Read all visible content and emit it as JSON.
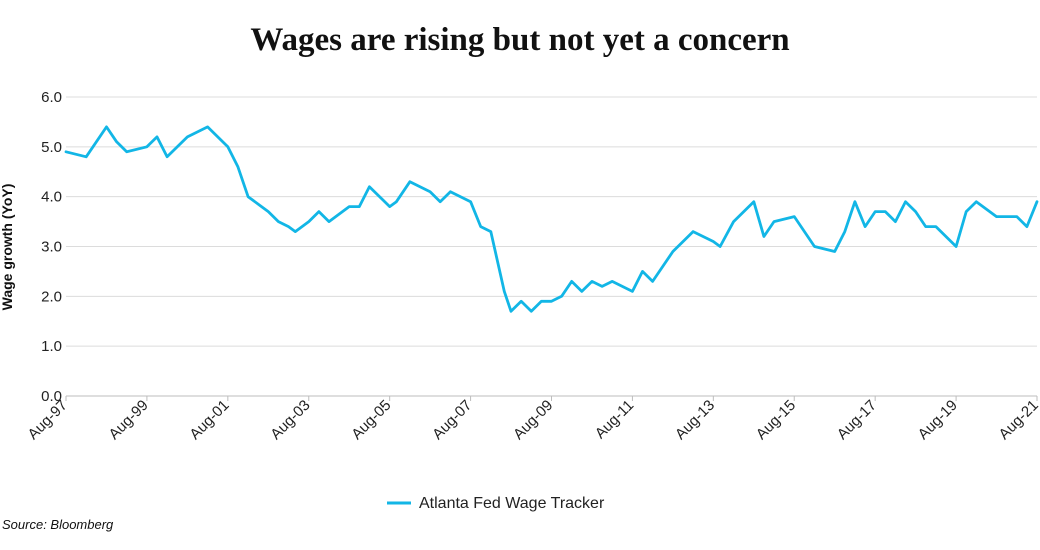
{
  "title": "Wages are rising but not yet a concern",
  "source": "Source: Bloomberg",
  "chart_data": {
    "type": "line",
    "ylabel": "Wage growth (YoY)",
    "xlabel": "",
    "ylim": [
      0,
      6
    ],
    "yticks": [
      "0.0",
      "1.0",
      "2.0",
      "3.0",
      "4.0",
      "5.0",
      "6.0"
    ],
    "xticks": [
      "Aug-97",
      "Aug-99",
      "Aug-01",
      "Aug-03",
      "Aug-05",
      "Aug-07",
      "Aug-09",
      "Aug-11",
      "Aug-13",
      "Aug-15",
      "Aug-17",
      "Aug-19",
      "Aug-21"
    ],
    "grid": true,
    "legend": "bottom-center",
    "series_color": "#12b6e6",
    "series": [
      {
        "name": "Atlanta Fed Wage Tracker",
        "x": [
          "Aug-97",
          "Feb-98",
          "Aug-98",
          "Nov-98",
          "Feb-99",
          "Aug-99",
          "Nov-99",
          "Feb-00",
          "Aug-00",
          "Feb-01",
          "Aug-01",
          "Nov-01",
          "Feb-02",
          "Jun-02",
          "Aug-02",
          "Nov-02",
          "Feb-03",
          "Apr-03",
          "Aug-03",
          "Nov-03",
          "Feb-04",
          "Aug-04",
          "Nov-04",
          "Feb-05",
          "Aug-05",
          "Oct-05",
          "Feb-06",
          "Aug-06",
          "Nov-06",
          "Feb-07",
          "Aug-07",
          "Nov-07",
          "Feb-08",
          "Jun-08",
          "Aug-08",
          "Nov-08",
          "Feb-09",
          "May-09",
          "Aug-09",
          "Nov-09",
          "Feb-10",
          "May-10",
          "Aug-10",
          "Nov-10",
          "Feb-11",
          "Aug-11",
          "Nov-11",
          "Feb-12",
          "Aug-12",
          "Feb-13",
          "Aug-13",
          "Oct-13",
          "Feb-14",
          "Aug-14",
          "Nov-14",
          "Feb-15",
          "Aug-15",
          "Feb-16",
          "Aug-16",
          "Nov-16",
          "Feb-17",
          "May-17",
          "Aug-17",
          "Nov-17",
          "Feb-18",
          "May-18",
          "Aug-18",
          "Nov-18",
          "Feb-19",
          "Aug-19",
          "Nov-19",
          "Feb-20",
          "Aug-20",
          "Feb-21",
          "May-21",
          "Aug-21"
        ],
        "values": [
          4.9,
          4.8,
          5.4,
          5.1,
          4.9,
          5.0,
          5.2,
          4.8,
          5.2,
          5.4,
          5.0,
          4.6,
          4.0,
          3.8,
          3.7,
          3.5,
          3.4,
          3.3,
          3.5,
          3.7,
          3.5,
          3.8,
          3.8,
          4.2,
          3.8,
          3.9,
          4.3,
          4.1,
          3.9,
          4.1,
          3.9,
          3.4,
          3.3,
          2.1,
          1.7,
          1.9,
          1.7,
          1.9,
          1.9,
          2.0,
          2.3,
          2.1,
          2.3,
          2.2,
          2.3,
          2.1,
          2.5,
          2.3,
          2.9,
          3.3,
          3.1,
          3.0,
          3.5,
          3.9,
          3.2,
          3.5,
          3.6,
          3.0,
          2.9,
          3.3,
          3.9,
          3.4,
          3.7,
          3.7,
          3.5,
          3.9,
          3.7,
          3.4,
          3.4,
          3.0,
          3.7,
          3.9,
          3.6,
          3.6,
          3.4,
          3.9
        ]
      }
    ]
  }
}
